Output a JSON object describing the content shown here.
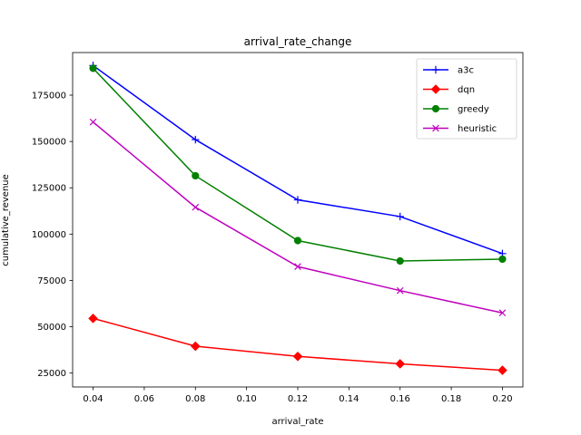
{
  "chart_data": {
    "type": "line",
    "title": "arrival_rate_change",
    "xlabel": "arrival_rate",
    "ylabel": "cumulative_revenue",
    "x": [
      0.04,
      0.08,
      0.12,
      0.16,
      0.2
    ],
    "xlim": [
      0.032,
      0.208
    ],
    "ylim": [
      17500,
      198000
    ],
    "xticks": [
      0.04,
      0.06,
      0.08,
      0.1,
      0.12,
      0.14,
      0.16,
      0.18,
      0.2
    ],
    "xtick_labels": [
      "0.04",
      "0.06",
      "0.08",
      "0.10",
      "0.12",
      "0.14",
      "0.16",
      "0.18",
      "0.20"
    ],
    "yticks": [
      25000,
      50000,
      75000,
      100000,
      125000,
      150000,
      175000
    ],
    "ytick_labels": [
      "25000",
      "50000",
      "75000",
      "100000",
      "125000",
      "150000",
      "175000"
    ],
    "grid": false,
    "legend_position": "top-right",
    "series": [
      {
        "name": "a3c",
        "color": "#0000ff",
        "marker": "plus",
        "values": [
          191000,
          151000,
          118500,
          109500,
          89500
        ]
      },
      {
        "name": "dqn",
        "color": "#ff0000",
        "marker": "diamond",
        "values": [
          54500,
          39500,
          34000,
          30000,
          26500
        ]
      },
      {
        "name": "greedy",
        "color": "#008000",
        "marker": "circle",
        "values": [
          189500,
          131500,
          96500,
          85500,
          86500
        ]
      },
      {
        "name": "heuristic",
        "color": "#bf00bf",
        "marker": "x",
        "values": [
          160500,
          114500,
          82500,
          69500,
          57500
        ]
      }
    ]
  }
}
